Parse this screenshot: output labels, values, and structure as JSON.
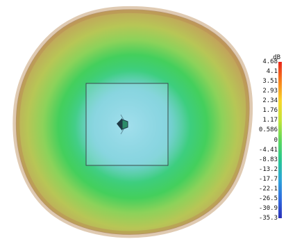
{
  "chart_data": {
    "type": "heatmap",
    "title": "",
    "subtitle": "",
    "colorbar": {
      "unit": "dB",
      "ticks": [
        "4.68",
        "4.1",
        "3.51",
        "2.93",
        "2.34",
        "1.76",
        "1.17",
        "0.586",
        "0",
        "-4.41",
        "-8.83",
        "-13.2",
        "-17.7",
        "-22.1",
        "-26.5",
        "-30.9",
        "-35.3"
      ],
      "max": 4.68,
      "min": -35.3,
      "colors": [
        "#e8261b",
        "#f8821c",
        "#f9d62a",
        "#c3e43a",
        "#5fd85b",
        "#27c88f",
        "#2ca6d8",
        "#2f6de0",
        "#2a2fb8"
      ]
    },
    "view": "3D far-field radiation pattern, top view"
  }
}
